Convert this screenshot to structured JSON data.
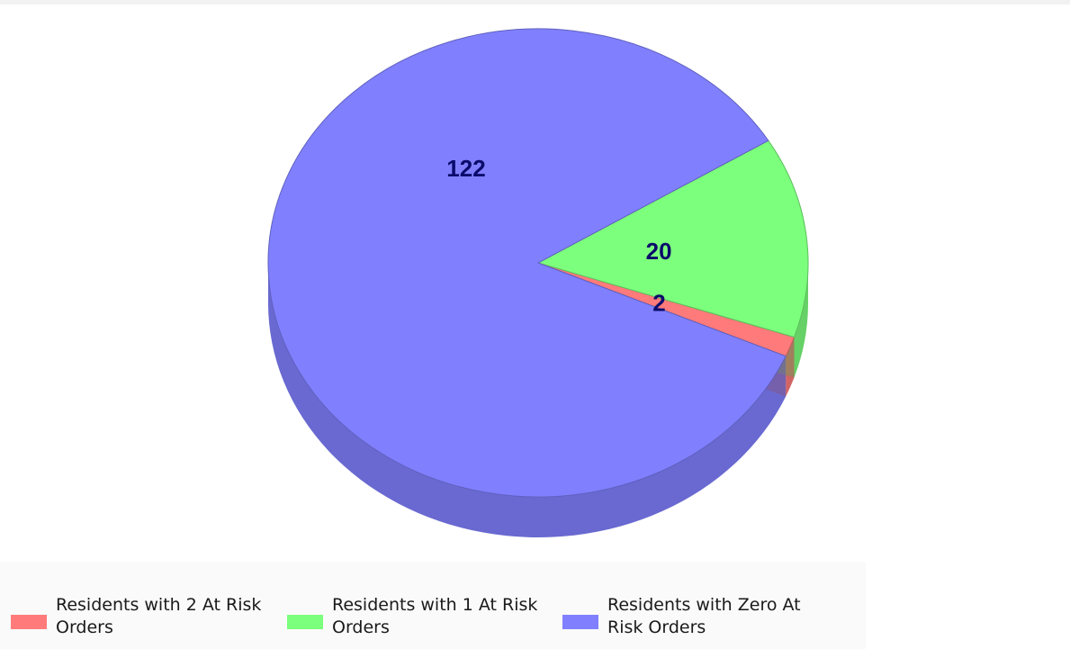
{
  "chart_data": {
    "type": "pie",
    "style": "3d",
    "categories": [
      "Residents with 2 At Risk Orders",
      "Residents with 1 At Risk Orders",
      "Residents with Zero At Risk Orders"
    ],
    "values": [
      2,
      20,
      122
    ],
    "data_labels": [
      "2",
      "20",
      "122"
    ],
    "colors": [
      "#ff7a7a",
      "#7cff7c",
      "#8080ff"
    ],
    "legend_position": "bottom"
  }
}
